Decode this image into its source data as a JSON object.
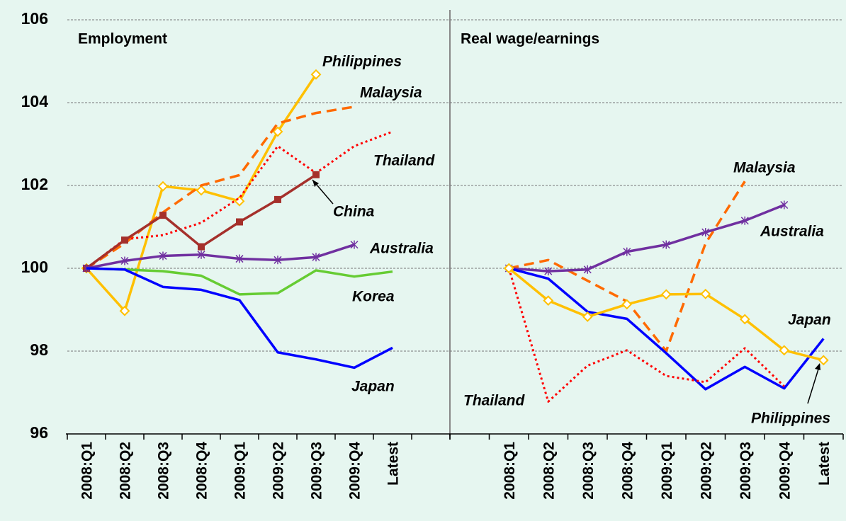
{
  "chart_data": [
    {
      "type": "line",
      "title": "Employment",
      "categories": [
        "2008:Q1",
        "2008:Q2",
        "2008:Q3",
        "2008:Q4",
        "2009:Q1",
        "2009:Q2",
        "2009:Q3",
        "2009:Q4",
        "Latest",
        null
      ],
      "ylim": [
        96,
        106
      ],
      "yticks": [
        96,
        98,
        100,
        102,
        104,
        106
      ],
      "grid": true,
      "series": [
        {
          "name": "Philippines",
          "color": "#ffc000",
          "marker": "diamond",
          "values": [
            100,
            98.97,
            101.98,
            101.88,
            101.62,
            103.3,
            104.68,
            null,
            null,
            null
          ]
        },
        {
          "name": "Malaysia",
          "color": "#ff6a00",
          "dash": "dashed",
          "values": [
            100,
            100.6,
            101.35,
            102.0,
            102.25,
            103.5,
            103.75,
            103.9,
            null,
            null
          ]
        },
        {
          "name": "Thailand",
          "color": "#ff0000",
          "dash": "dotted",
          "values": [
            100,
            100.7,
            100.8,
            101.1,
            101.7,
            102.95,
            102.3,
            102.95,
            103.3,
            null
          ]
        },
        {
          "name": "China",
          "color": "#a5302b",
          "marker": "square",
          "values": [
            100,
            100.68,
            101.28,
            100.52,
            101.12,
            101.66,
            102.26,
            null,
            null,
            null
          ]
        },
        {
          "name": "Australia",
          "color": "#7030a0",
          "marker": "asterisk",
          "values": [
            100,
            100.18,
            100.3,
            100.33,
            100.23,
            100.2,
            100.27,
            100.57,
            null,
            null
          ]
        },
        {
          "name": "Korea",
          "color": "#66cc33",
          "values": [
            100,
            99.97,
            99.93,
            99.82,
            99.37,
            99.4,
            99.95,
            99.8,
            99.92,
            null
          ]
        },
        {
          "name": "Japan",
          "color": "#0000ff",
          "values": [
            100,
            99.97,
            99.55,
            99.48,
            99.23,
            97.97,
            97.8,
            97.6,
            98.08,
            null
          ]
        }
      ]
    },
    {
      "type": "line",
      "title": "Real wage/earnings",
      "categories": [
        null,
        "2008:Q1",
        "2008:Q2",
        "2008:Q3",
        "2008:Q4",
        "2009:Q1",
        "2009:Q2",
        "2009:Q3",
        "2009:Q4",
        "Latest"
      ],
      "ylim": [
        96,
        106
      ],
      "yticks": [
        96,
        98,
        100,
        102,
        104,
        106
      ],
      "grid": true,
      "series": [
        {
          "name": "Malaysia",
          "color": "#ff6a00",
          "dash": "dashed",
          "values": [
            null,
            100,
            100.2,
            99.7,
            99.2,
            98.0,
            100.6,
            102.1,
            null,
            null
          ]
        },
        {
          "name": "Australia",
          "color": "#7030a0",
          "marker": "asterisk",
          "values": [
            null,
            100,
            99.93,
            99.97,
            100.4,
            100.57,
            100.87,
            101.15,
            101.53,
            null
          ]
        },
        {
          "name": "Japan",
          "color": "#0000ff",
          "values": [
            null,
            100,
            99.75,
            98.95,
            98.78,
            97.95,
            97.08,
            97.62,
            97.1,
            98.3
          ]
        },
        {
          "name": "Thailand",
          "color": "#ff0000",
          "dash": "dotted",
          "values": [
            null,
            100,
            96.78,
            97.65,
            98.02,
            97.4,
            97.25,
            98.07,
            97.15,
            null
          ]
        },
        {
          "name": "Philippines",
          "color": "#ffc000",
          "marker": "diamond",
          "values": [
            null,
            100,
            99.22,
            98.83,
            99.13,
            99.37,
            99.38,
            98.77,
            98.02,
            97.78
          ]
        }
      ]
    }
  ]
}
